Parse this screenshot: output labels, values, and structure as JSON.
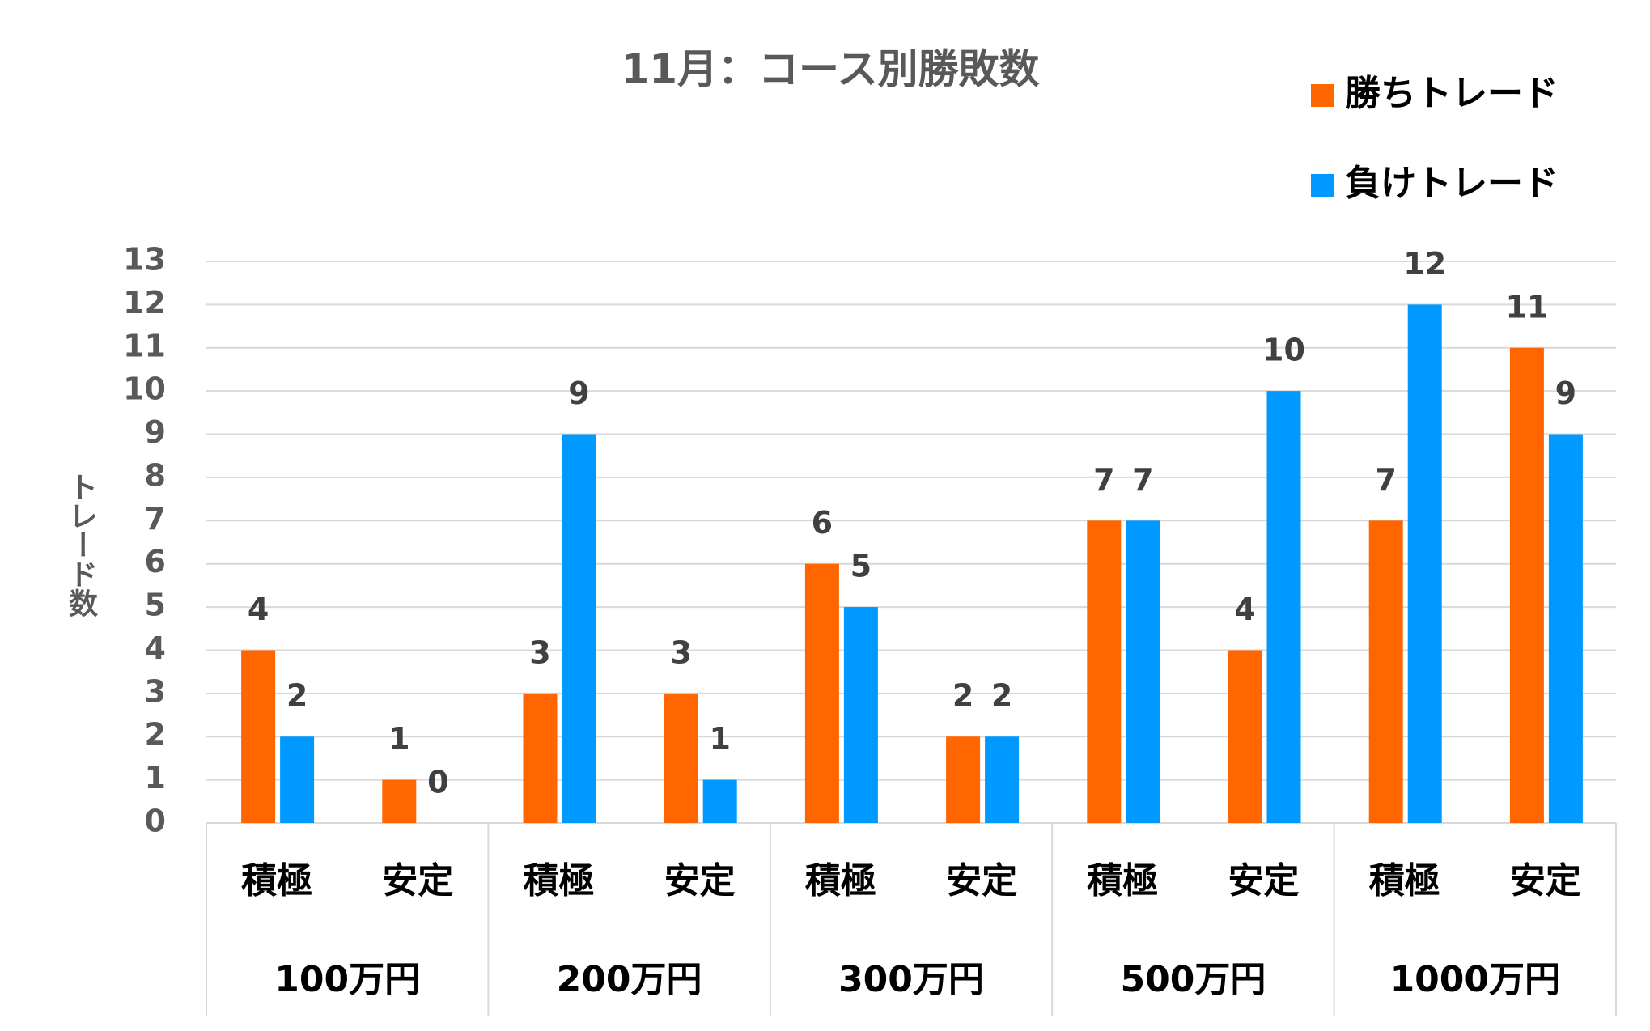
{
  "chart_data": {
    "type": "bar",
    "title": "11月：コース別勝敗数",
    "y_label": "トレード数",
    "categories": [
      "積極",
      "安定",
      "積極",
      "安定",
      "積極",
      "安定",
      "積極",
      "安定",
      "積極",
      "安定"
    ],
    "groups": [
      "100万円",
      "200万円",
      "300万円",
      "500万円",
      "1000万円"
    ],
    "series": [
      {
        "name": "勝ちトレード",
        "color": "#ff6600",
        "values": [
          4,
          1,
          3,
          3,
          6,
          2,
          7,
          4,
          7,
          11
        ]
      },
      {
        "name": "負けトレード",
        "color": "#0099ff",
        "values": [
          2,
          0,
          9,
          1,
          5,
          2,
          7,
          10,
          12,
          9
        ]
      }
    ],
    "ylim": [
      0,
      13
    ],
    "yticks": [
      0,
      1,
      2,
      3,
      4,
      5,
      6,
      7,
      8,
      9,
      10,
      11,
      12,
      13
    ],
    "grid": true,
    "legend": "top-right"
  }
}
